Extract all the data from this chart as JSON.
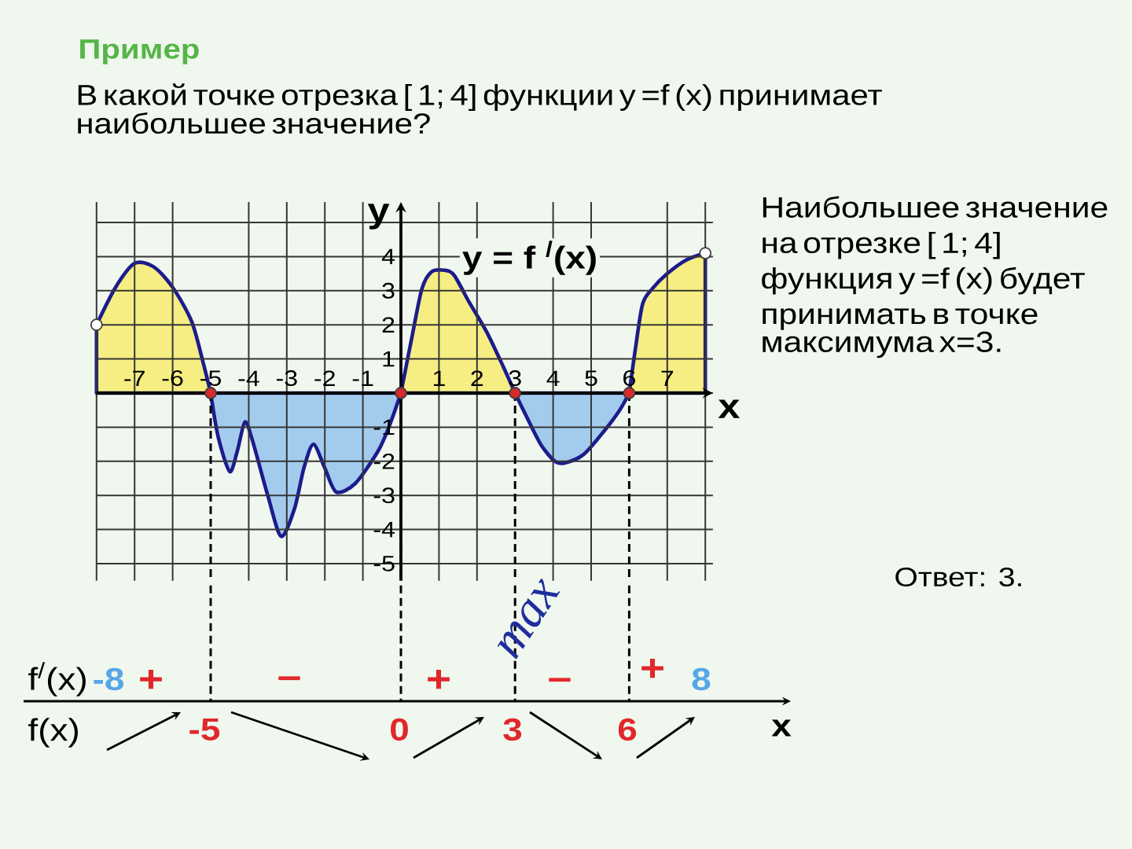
{
  "chart_data": {
    "type": "area",
    "title": "Пример",
    "subtitle": "В какой точке отрезка [ 1; 4] функции y =f (x) принимает наибольшее значение?",
    "xlabel": "x",
    "ylabel": "y",
    "xlim": [
      -8,
      8.2
    ],
    "ylim": [
      -5.5,
      5.6
    ],
    "xticks": [
      {
        "value": -8,
        "label": null
      },
      -7,
      -6,
      -5,
      -4,
      -3,
      -2,
      -1,
      {
        "value": 0,
        "label": null
      },
      1,
      2,
      3,
      4,
      5,
      6,
      7,
      {
        "value": 8,
        "label": null
      }
    ],
    "yticks": [
      -5,
      -4,
      -3,
      -2,
      -1,
      {
        "value": 0,
        "label": null
      },
      1,
      2,
      3,
      4,
      {
        "value": 5,
        "label": null
      }
    ],
    "grid": true,
    "series": [
      {
        "color": "#f6ee82",
        "x": [
          -8,
          -7.5,
          -7,
          -6.5,
          -6,
          -5.5,
          -5.2,
          -5
        ],
        "values": [
          2,
          3.1,
          3.8,
          3.7,
          3.1,
          2.1,
          0.9,
          0
        ]
      },
      {
        "color": "#a3cbee",
        "x": [
          -5,
          -4.8,
          -4.5,
          -4.3,
          -4.1,
          -3.9,
          -3.5,
          -3.15,
          -2.8,
          -2.55,
          -2.3,
          -2,
          -1.7,
          -1.2,
          -0.6,
          -0.3,
          0
        ],
        "values": [
          0,
          -1.3,
          -2.3,
          -1.7,
          -0.85,
          -1.4,
          -3,
          -4.2,
          -3.4,
          -2.2,
          -1.5,
          -2.2,
          -2.9,
          -2.65,
          -1.7,
          -0.95,
          0
        ]
      },
      {
        "color": "#f6ee82",
        "x": [
          0,
          0.3,
          0.55,
          0.8,
          1.15,
          1.4,
          1.8,
          2.25,
          2.7,
          3
        ],
        "values": [
          0,
          1.7,
          3.05,
          3.55,
          3.6,
          3.45,
          2.65,
          1.8,
          0.75,
          0
        ]
      },
      {
        "color": "#a3cbee",
        "x": [
          3,
          3.35,
          3.7,
          4.05,
          4.3,
          4.8,
          5.35,
          5.75,
          6
        ],
        "values": [
          0,
          -0.8,
          -1.55,
          -2,
          -2.05,
          -1.8,
          -1.1,
          -0.5,
          0
        ]
      },
      {
        "color": "#f6ee82",
        "x": [
          6,
          6.15,
          6.35,
          6.6,
          7,
          7.5,
          8
        ],
        "values": [
          0,
          1.2,
          2.6,
          3.05,
          3.5,
          3.9,
          4.1
        ]
      },
      {
        "type": "scatter",
        "color": "#d82a2a",
        "marker": "circle",
        "x": [
          -5,
          0,
          3,
          6
        ],
        "values": [
          0,
          0,
          0,
          0
        ]
      },
      {
        "type": "scatter",
        "color": "#ffffff",
        "marker": "circle",
        "x": [
          -8,
          8
        ],
        "values": [
          2,
          4.1
        ]
      }
    ],
    "ref_lines": [
      {
        "axis": "x",
        "value": -5,
        "line_style": "dashed"
      },
      {
        "axis": "x",
        "value": 0,
        "line_style": "dashed"
      },
      {
        "axis": "x",
        "value": 3,
        "line_style": "dashed"
      },
      {
        "axis": "x",
        "value": 6,
        "line_style": "dashed"
      }
    ],
    "annotations": [
      "Наибольшее значение\nна отрезке [ 1; 4]\nфункция y =f (x) будет\nпринимать в точке\nмаксимума x=3.",
      "y = f $^{/}$(x)",
      "Ответ: 3.",
      "max",
      "f$^{/}$(x)",
      "-8",
      "+",
      "–",
      "+",
      "–",
      "+",
      "8",
      "f(x)",
      "-5",
      "0",
      "3",
      "6",
      "x"
    ]
  }
}
